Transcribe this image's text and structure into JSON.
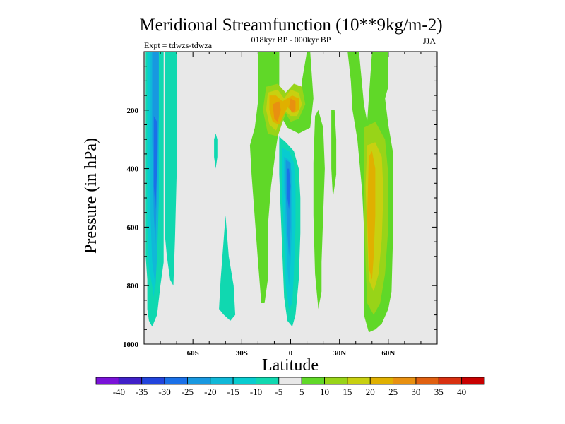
{
  "chart_data": {
    "type": "heatmap",
    "subtype": "filled-contour",
    "title": "Meridional Streamfunction (10**9kg/m-2)",
    "subtitle": "018kyr BP - 000kyr BP",
    "left_label": "Expt = tdwzs-tdwza",
    "right_label": "JJA",
    "xlabel": "Latitude",
    "ylabel": "Pressure (in hPa)",
    "xlim": [
      -90,
      90
    ],
    "ylim": [
      1000,
      0
    ],
    "y_reversed": true,
    "x_ticks": [
      {
        "value": -60,
        "label": "60S"
      },
      {
        "value": -30,
        "label": "30S"
      },
      {
        "value": 0,
        "label": "0"
      },
      {
        "value": 30,
        "label": "30N"
      },
      {
        "value": 60,
        "label": "60N"
      }
    ],
    "y_ticks": [
      {
        "value": 200,
        "label": "200"
      },
      {
        "value": 400,
        "label": "400"
      },
      {
        "value": 600,
        "label": "600"
      },
      {
        "value": 800,
        "label": "800"
      },
      {
        "value": 1000,
        "label": "1000"
      }
    ],
    "colorbar": {
      "labels": [
        "-40",
        "-35",
        "-30",
        "-25",
        "-20",
        "-15",
        "-10",
        "-5",
        "5",
        "10",
        "15",
        "20",
        "25",
        "30",
        "35",
        "40"
      ],
      "colors": [
        "#7a12d8",
        "#4020c8",
        "#2244dc",
        "#1a70e8",
        "#1898e0",
        "#10b8d8",
        "#08ccd0",
        "#10d8b0",
        "#e8e8e8",
        "#60d828",
        "#98d418",
        "#c8d010",
        "#e0b000",
        "#e89010",
        "#e06010",
        "#d83010",
        "#c80000"
      ]
    },
    "background_color": "#e8e8e8",
    "regions": [
      {
        "id": "sh-cell-outer",
        "level": -10,
        "color": "#10d8b0",
        "points": [
          [
            -89,
            0
          ],
          [
            -78,
            0
          ],
          [
            -78,
            720
          ],
          [
            -80,
            800
          ],
          [
            -82,
            900
          ],
          [
            -85,
            940
          ],
          [
            -87,
            920
          ],
          [
            -88,
            880
          ],
          [
            -88,
            780
          ],
          [
            -89,
            700
          ]
        ]
      },
      {
        "id": "sh-cell-outer-b",
        "level": -10,
        "color": "#10d8b0",
        "points": [
          [
            -77,
            0
          ],
          [
            -70,
            0
          ],
          [
            -70,
            420
          ],
          [
            -71,
            640
          ],
          [
            -72,
            800
          ],
          [
            -74,
            780
          ],
          [
            -76,
            700
          ],
          [
            -77,
            640
          ]
        ]
      },
      {
        "id": "sh-cell-l2",
        "level": -15,
        "color": "#08ccd0",
        "points": [
          [
            -88,
            0
          ],
          [
            -81,
            0
          ],
          [
            -81,
            500
          ],
          [
            -82,
            620
          ],
          [
            -83,
            760
          ],
          [
            -84,
            840
          ],
          [
            -85,
            800
          ],
          [
            -87,
            740
          ],
          [
            -88,
            600
          ]
        ]
      },
      {
        "id": "sh-cell-l3",
        "level": -20,
        "color": "#10b8d8",
        "points": [
          [
            -86,
            0
          ],
          [
            -81,
            0
          ],
          [
            -81,
            520
          ],
          [
            -82,
            700
          ],
          [
            -83,
            800
          ],
          [
            -85,
            720
          ],
          [
            -86,
            560
          ]
        ]
      },
      {
        "id": "sh-cell-l4",
        "level": -25,
        "color": "#1898e0",
        "points": [
          [
            -85,
            0
          ],
          [
            -81,
            0
          ],
          [
            -81,
            220
          ],
          [
            -82,
            460
          ],
          [
            -83,
            660
          ],
          [
            -84,
            560
          ],
          [
            -85,
            300
          ]
        ]
      },
      {
        "id": "sh-cell-core",
        "level": -30,
        "color": "#1a70e8",
        "points": [
          [
            -84,
            220
          ],
          [
            -82,
            240
          ],
          [
            -82,
            400
          ],
          [
            -83,
            540
          ],
          [
            -84,
            460
          ]
        ]
      },
      {
        "id": "midlat-s-a",
        "level": -10,
        "color": "#10d8b0",
        "points": [
          [
            -46,
            280
          ],
          [
            -45,
            300
          ],
          [
            -45,
            360
          ],
          [
            -46,
            400
          ],
          [
            -47,
            360
          ],
          [
            -47,
            300
          ]
        ]
      },
      {
        "id": "midlat-s-b",
        "level": -10,
        "color": "#10d8b0",
        "points": [
          [
            -40,
            560
          ],
          [
            -38,
            700
          ],
          [
            -35,
            800
          ],
          [
            -34,
            900
          ],
          [
            -37,
            920
          ],
          [
            -41,
            900
          ],
          [
            -44,
            880
          ],
          [
            -43,
            780
          ]
        ]
      },
      {
        "id": "tropics-pos-outer",
        "level": 5,
        "color": "#60d828",
        "points": [
          [
            -20,
            0
          ],
          [
            -7,
            0
          ],
          [
            -7,
            130
          ],
          [
            -3,
            180
          ],
          [
            2,
            160
          ],
          [
            7,
            140
          ],
          [
            7,
            100
          ],
          [
            10,
            0
          ],
          [
            12,
            0
          ],
          [
            14,
            160
          ],
          [
            12,
            260
          ],
          [
            5,
            280
          ],
          [
            -2,
            260
          ],
          [
            -6,
            220
          ],
          [
            -9,
            330
          ],
          [
            -12,
            460
          ],
          [
            -14,
            600
          ],
          [
            -14,
            780
          ],
          [
            -16,
            860
          ],
          [
            -18,
            860
          ],
          [
            -20,
            720
          ],
          [
            -24,
            420
          ],
          [
            -25,
            320
          ],
          [
            -22,
            260
          ],
          [
            -20,
            170
          ]
        ]
      },
      {
        "id": "tropics-pos-l2",
        "level": 10,
        "color": "#98d418",
        "points": [
          [
            -15,
            120
          ],
          [
            -8,
            110
          ],
          [
            -3,
            140
          ],
          [
            2,
            110
          ],
          [
            7,
            120
          ],
          [
            9,
            180
          ],
          [
            5,
            230
          ],
          [
            0,
            240
          ],
          [
            -3,
            210
          ],
          [
            -8,
            290
          ],
          [
            -14,
            280
          ],
          [
            -17,
            200
          ]
        ]
      },
      {
        "id": "tropics-pos-l3",
        "level": 15,
        "color": "#c8d010",
        "points": [
          [
            -14,
            140
          ],
          [
            -8,
            130
          ],
          [
            -4,
            160
          ],
          [
            0,
            130
          ],
          [
            5,
            140
          ],
          [
            7,
            180
          ],
          [
            4,
            220
          ],
          [
            0,
            220
          ],
          [
            -4,
            200
          ],
          [
            -9,
            270
          ],
          [
            -13,
            250
          ],
          [
            -15,
            200
          ]
        ]
      },
      {
        "id": "tropics-pos-l4",
        "level": 20,
        "color": "#e0b000",
        "points": [
          [
            -13,
            150
          ],
          [
            -9,
            150
          ],
          [
            -5,
            170
          ],
          [
            -2,
            160
          ],
          [
            1,
            150
          ],
          [
            5,
            160
          ],
          [
            5,
            200
          ],
          [
            2,
            210
          ],
          [
            -2,
            190
          ],
          [
            -7,
            250
          ],
          [
            -11,
            240
          ],
          [
            -13,
            200
          ]
        ]
      },
      {
        "id": "tropics-pos-l5",
        "level": 25,
        "color": "#e89010",
        "points": [
          [
            -11,
            180
          ],
          [
            -7,
            170
          ],
          [
            -6,
            200
          ],
          [
            -8,
            240
          ],
          [
            -10,
            230
          ]
        ]
      },
      {
        "id": "tropics-pos-l5b",
        "level": 25,
        "color": "#e89010",
        "points": [
          [
            0,
            160
          ],
          [
            3,
            170
          ],
          [
            3,
            200
          ],
          [
            1,
            210
          ],
          [
            -1,
            190
          ]
        ]
      },
      {
        "id": "tropics-neg-outer",
        "level": -10,
        "color": "#10d8b0",
        "points": [
          [
            -7,
            290
          ],
          [
            -3,
            310
          ],
          [
            2,
            340
          ],
          [
            5,
            400
          ],
          [
            6,
            500
          ],
          [
            6,
            620
          ],
          [
            5,
            780
          ],
          [
            3,
            900
          ],
          [
            1,
            940
          ],
          [
            -2,
            920
          ],
          [
            -4,
            840
          ],
          [
            -5,
            700
          ],
          [
            -6,
            560
          ],
          [
            -7,
            420
          ]
        ]
      },
      {
        "id": "tropics-neg-l2",
        "level": -15,
        "color": "#08ccd0",
        "points": [
          [
            -5,
            330
          ],
          [
            -1,
            340
          ],
          [
            2,
            380
          ],
          [
            3,
            460
          ],
          [
            3,
            600
          ],
          [
            2,
            760
          ],
          [
            1,
            860
          ],
          [
            -1,
            880
          ],
          [
            -3,
            800
          ],
          [
            -4,
            660
          ],
          [
            -5,
            500
          ]
        ]
      },
      {
        "id": "tropics-neg-l3",
        "level": -20,
        "color": "#10b8d8",
        "points": [
          [
            -4,
            360
          ],
          [
            -1,
            370
          ],
          [
            1,
            420
          ],
          [
            1,
            560
          ],
          [
            0,
            720
          ],
          [
            -1,
            800
          ],
          [
            -2,
            740
          ],
          [
            -3,
            600
          ],
          [
            -4,
            460
          ]
        ]
      },
      {
        "id": "tropics-neg-l4",
        "level": -25,
        "color": "#1898e0",
        "points": [
          [
            -3,
            370
          ],
          [
            0,
            380
          ],
          [
            0,
            460
          ],
          [
            0,
            600
          ],
          [
            -1,
            700
          ],
          [
            -2,
            620
          ],
          [
            -3,
            480
          ]
        ]
      },
      {
        "id": "tropics-neg-core",
        "level": -30,
        "color": "#1a70e8",
        "points": [
          [
            -2,
            400
          ],
          [
            -1,
            400
          ],
          [
            0,
            460
          ],
          [
            -1,
            540
          ],
          [
            -2,
            500
          ]
        ]
      },
      {
        "id": "midlat-n-a",
        "level": 5,
        "color": "#60d828",
        "points": [
          [
            15,
            220
          ],
          [
            17,
            200
          ],
          [
            20,
            260
          ],
          [
            21,
            400
          ],
          [
            20,
            560
          ],
          [
            19,
            720
          ],
          [
            19,
            820
          ],
          [
            17,
            880
          ],
          [
            15,
            760
          ],
          [
            14,
            560
          ],
          [
            14,
            380
          ]
        ]
      },
      {
        "id": "midlat-n-b",
        "level": 5,
        "color": "#60d828",
        "points": [
          [
            25,
            200
          ],
          [
            27,
            200
          ],
          [
            28,
            300
          ],
          [
            28,
            420
          ],
          [
            26,
            500
          ],
          [
            25,
            400
          ]
        ]
      },
      {
        "id": "nh-cell-outer",
        "level": 5,
        "color": "#60d828",
        "points": [
          [
            35,
            0
          ],
          [
            42,
            0
          ],
          [
            45,
            180
          ],
          [
            47,
            240
          ],
          [
            50,
            0
          ],
          [
            60,
            0
          ],
          [
            60,
            120
          ],
          [
            58,
            160
          ],
          [
            60,
            250
          ],
          [
            63,
            350
          ],
          [
            63,
            600
          ],
          [
            62,
            820
          ],
          [
            60,
            880
          ],
          [
            56,
            930
          ],
          [
            52,
            950
          ],
          [
            48,
            960
          ],
          [
            45,
            900
          ],
          [
            45,
            600
          ],
          [
            44,
            480
          ],
          [
            41,
            300
          ],
          [
            38,
            200
          ],
          [
            37,
            100
          ]
        ]
      },
      {
        "id": "nh-cell-l2",
        "level": 10,
        "color": "#98d418",
        "points": [
          [
            45,
            260
          ],
          [
            52,
            240
          ],
          [
            58,
            300
          ],
          [
            60,
            420
          ],
          [
            60,
            600
          ],
          [
            58,
            760
          ],
          [
            55,
            860
          ],
          [
            51,
            900
          ],
          [
            47,
            860
          ],
          [
            46,
            720
          ],
          [
            45,
            520
          ]
        ]
      },
      {
        "id": "nh-cell-l3",
        "level": 15,
        "color": "#c8d010",
        "points": [
          [
            47,
            320
          ],
          [
            52,
            310
          ],
          [
            56,
            360
          ],
          [
            57,
            480
          ],
          [
            56,
            640
          ],
          [
            54,
            760
          ],
          [
            51,
            820
          ],
          [
            48,
            780
          ],
          [
            47,
            620
          ],
          [
            46,
            460
          ]
        ]
      },
      {
        "id": "nh-cell-core",
        "level": 20,
        "color": "#e0b000",
        "points": [
          [
            48,
            360
          ],
          [
            50,
            340
          ],
          [
            52,
            400
          ],
          [
            52,
            560
          ],
          [
            51,
            700
          ],
          [
            50,
            780
          ],
          [
            48,
            740
          ],
          [
            47,
            560
          ]
        ]
      }
    ]
  }
}
